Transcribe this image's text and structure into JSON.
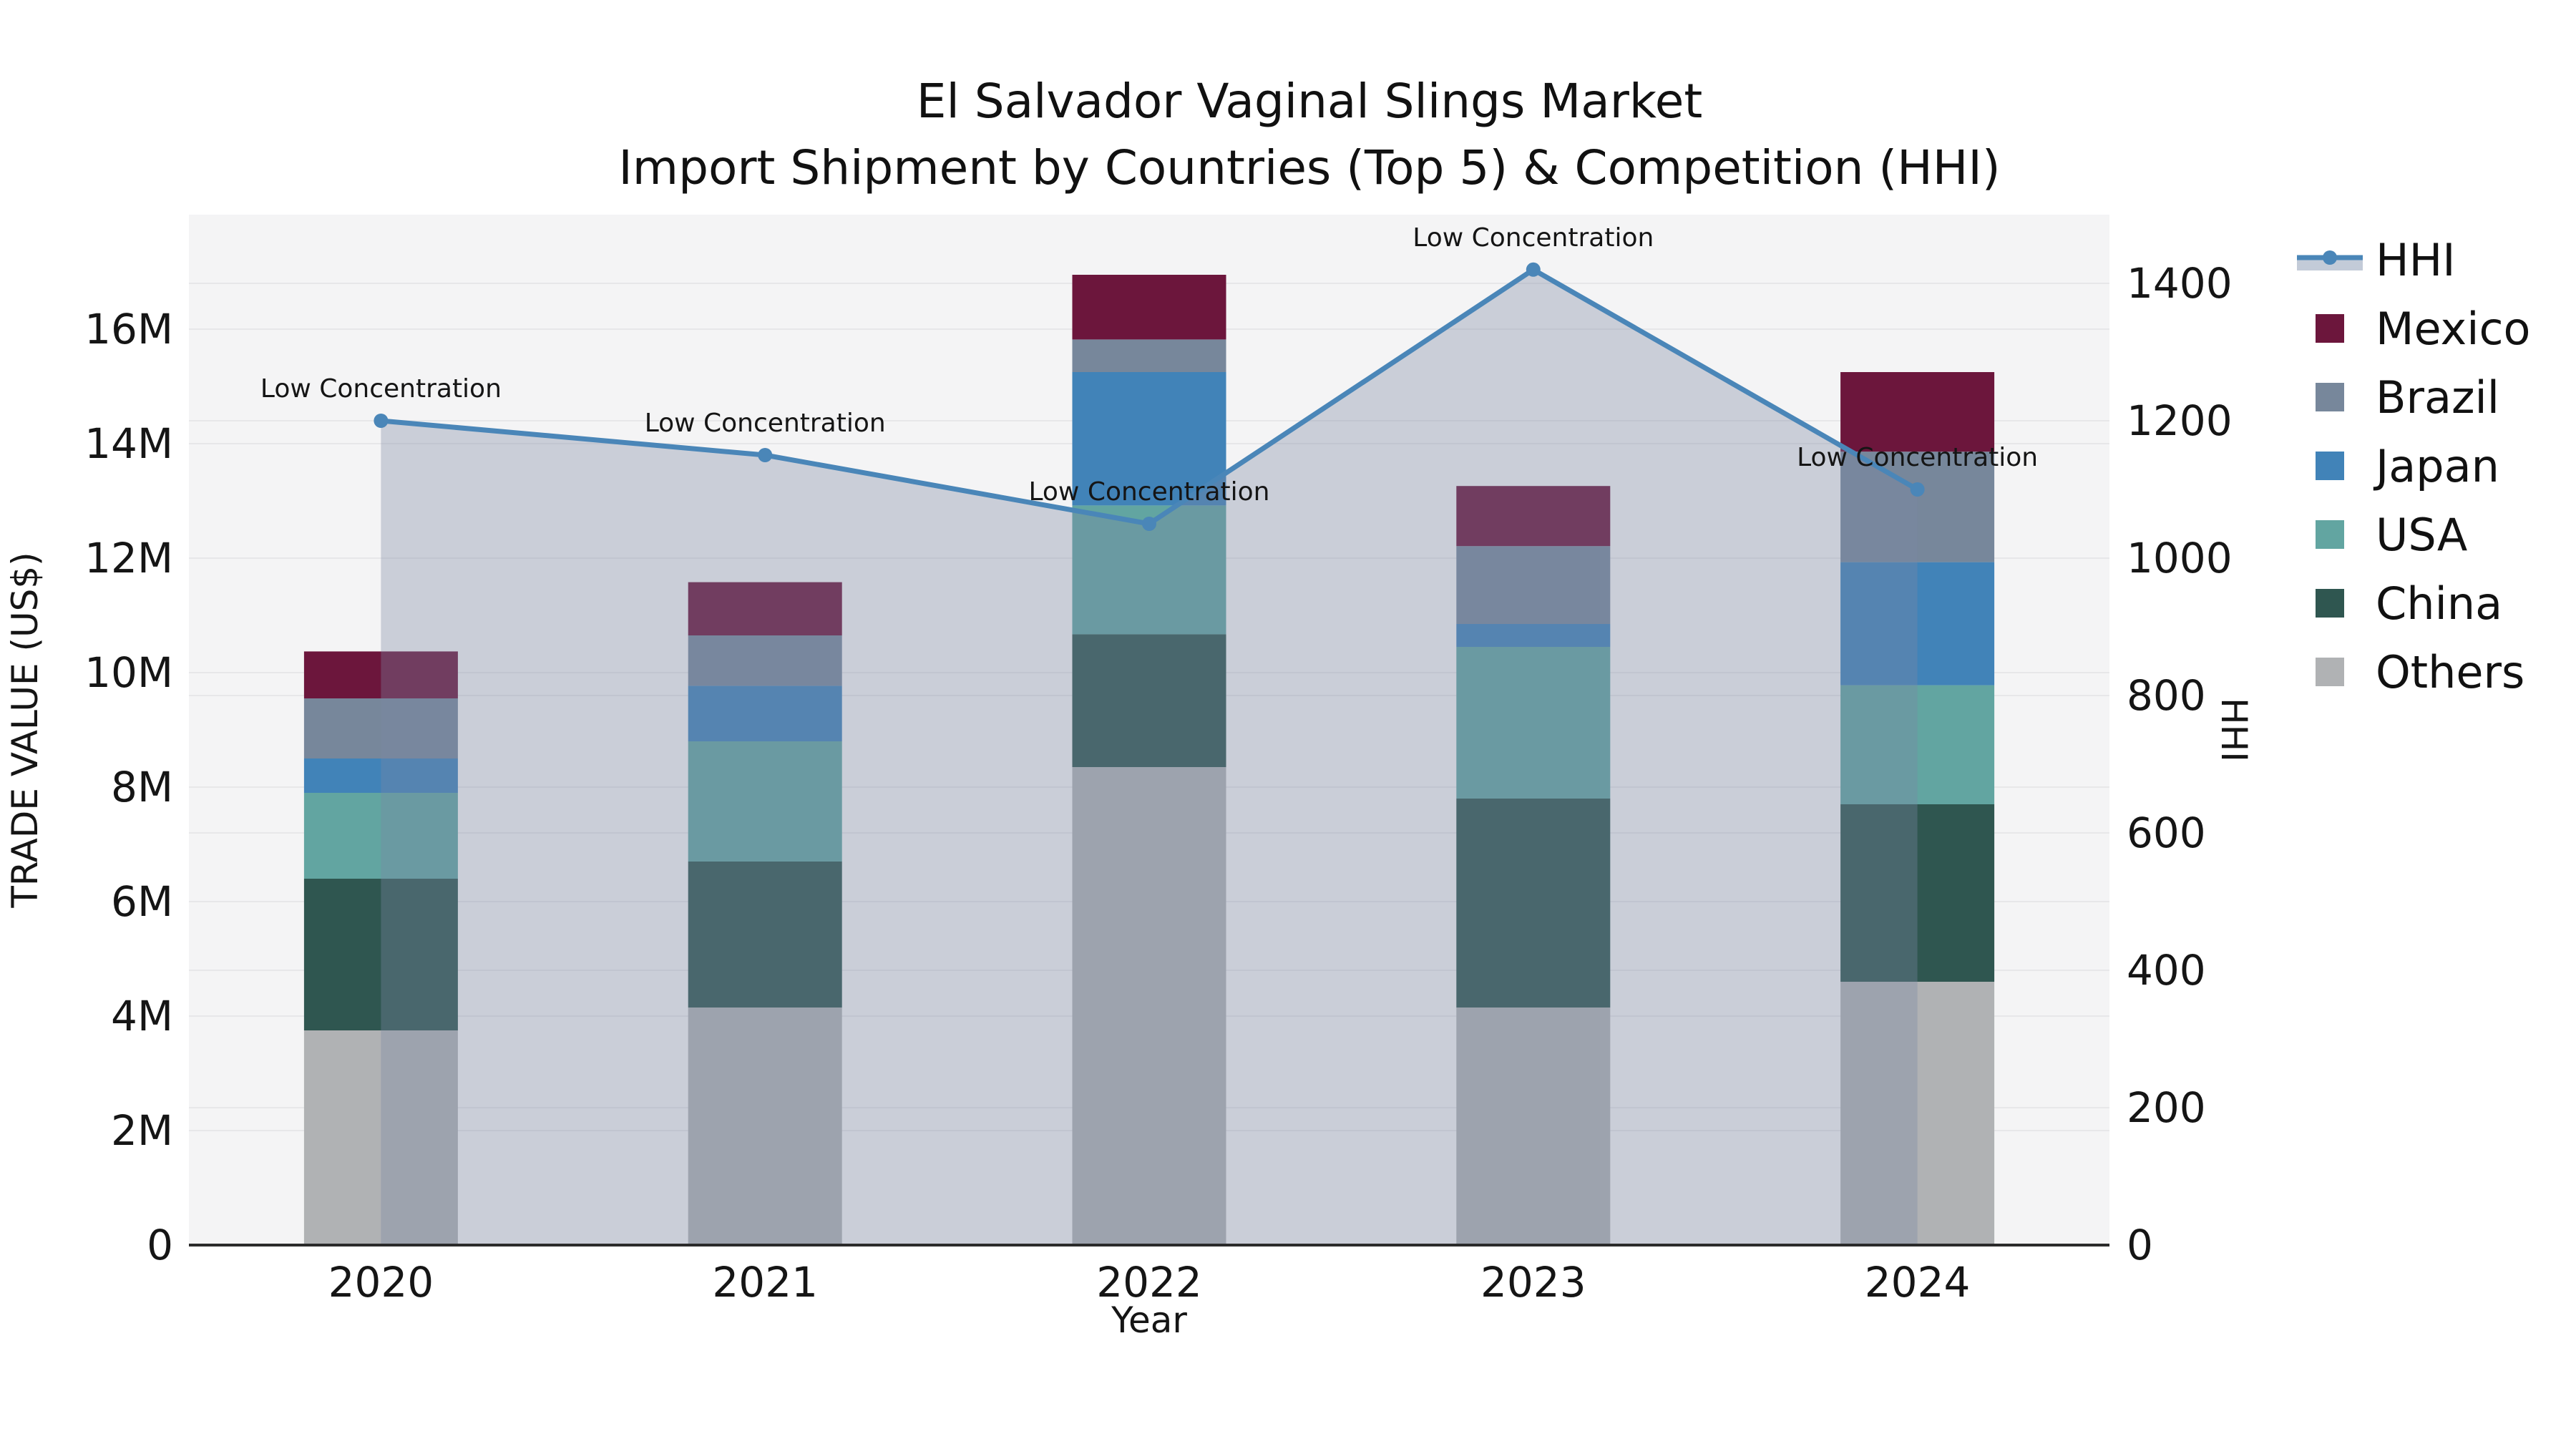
{
  "chart": {
    "title_line1": "El Salvador Vaginal Slings Market",
    "title_line2": "Import Shipment by Countries (Top 5) & Competition (HHI)"
  },
  "chart_data": {
    "type": "bar+line",
    "title": "El Salvador Vaginal Slings Market Import Shipment by Countries (Top 5) & Competition (HHI)",
    "categories": [
      "2020",
      "2021",
      "2022",
      "2023",
      "2024"
    ],
    "stack_order_bottom_to_top": [
      "Others",
      "China",
      "USA",
      "Japan",
      "Brazil",
      "Mexico"
    ],
    "series": [
      {
        "name": "Others",
        "color": "#b0b2b4",
        "values_musd": [
          3.75,
          4.15,
          8.35,
          4.15,
          4.6
        ]
      },
      {
        "name": "China",
        "color": "#2f5650",
        "values_musd": [
          2.65,
          2.55,
          2.32,
          3.65,
          3.1
        ]
      },
      {
        "name": "USA",
        "color": "#62a5a1",
        "values_musd": [
          1.5,
          2.1,
          2.25,
          2.65,
          2.08
        ]
      },
      {
        "name": "Japan",
        "color": "#4183b8",
        "values_musd": [
          0.6,
          0.97,
          2.33,
          0.4,
          2.15
        ]
      },
      {
        "name": "Brazil",
        "color": "#77879b",
        "values_musd": [
          1.05,
          0.88,
          0.57,
          1.36,
          1.93
        ]
      },
      {
        "name": "Mexico",
        "color": "#6c163c",
        "values_musd": [
          0.82,
          0.93,
          1.13,
          1.05,
          1.39
        ]
      }
    ],
    "bar_totals_musd": [
      10.37,
      11.58,
      16.95,
      13.26,
      15.25
    ],
    "line_series": {
      "name": "HHI",
      "color": "#4a86b8",
      "fill_color": "#7a88a3",
      "fill_opacity": 0.35,
      "values": [
        1200,
        1150,
        1050,
        1420,
        1100
      ]
    },
    "annotations": [
      "Low Concentration",
      "Low Concentration",
      "Low Concentration",
      "Low Concentration",
      "Low Concentration"
    ],
    "xlabel": "Year",
    "ylabel_left": "TRADE VALUE (US$)",
    "ylabel_right": "HHI",
    "y_left_ticks": [
      "0",
      "2M",
      "4M",
      "6M",
      "8M",
      "10M",
      "12M",
      "14M",
      "16M"
    ],
    "y_left_tick_values_musd": [
      0,
      2,
      4,
      6,
      8,
      10,
      12,
      14,
      16
    ],
    "y_right_ticks": [
      "0",
      "200",
      "400",
      "600",
      "800",
      "1000",
      "1200",
      "1400"
    ],
    "y_right_tick_values": [
      0,
      200,
      400,
      600,
      800,
      1000,
      1200,
      1400
    ],
    "ylim_left_musd": [
      0,
      18
    ],
    "ylim_right": [
      0,
      1500
    ],
    "grid": true,
    "legend_position": "right",
    "plot_bg_color": "#f4f4f5",
    "grid_color": "#e7e7e9",
    "axis_line_color": "#2b2b2b",
    "text_color": "#151515"
  },
  "legend": {
    "entries": [
      {
        "label": "HHI",
        "type": "line",
        "color": "#4a86b8",
        "band_color": "#c3cbd8"
      },
      {
        "label": "Mexico",
        "type": "patch",
        "color": "#6c163c"
      },
      {
        "label": "Brazil",
        "type": "patch",
        "color": "#77879b"
      },
      {
        "label": "Japan",
        "type": "patch",
        "color": "#4183b8"
      },
      {
        "label": "USA",
        "type": "patch",
        "color": "#62a5a1"
      },
      {
        "label": "China",
        "type": "patch",
        "color": "#2f5650"
      },
      {
        "label": "Others",
        "type": "patch",
        "color": "#b0b2b4"
      }
    ]
  }
}
